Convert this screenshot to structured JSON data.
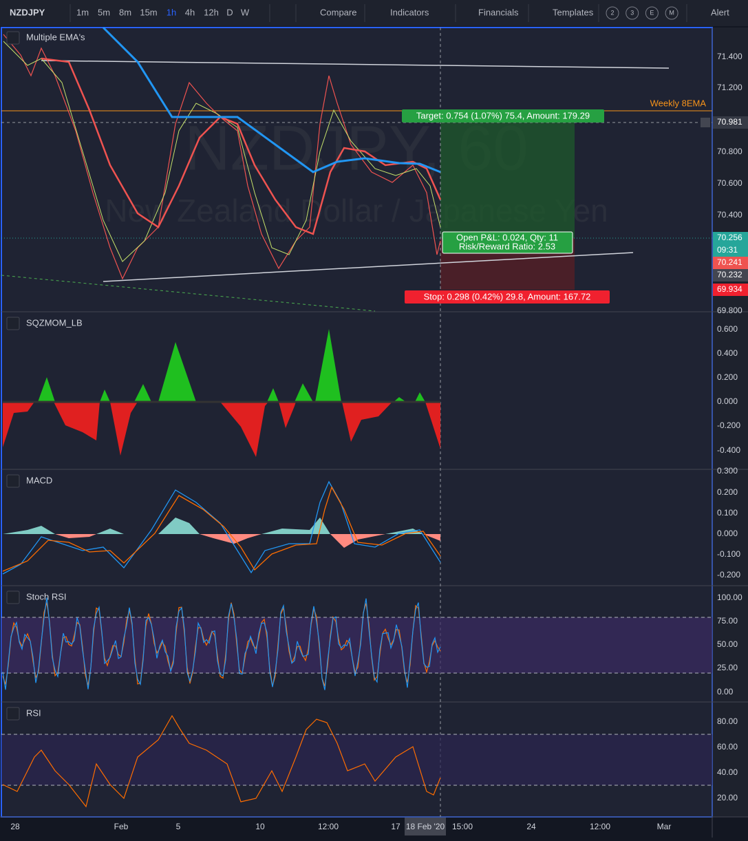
{
  "toolbar": {
    "symbol": "NZDJPY",
    "intervals": [
      "1m",
      "5m",
      "8m",
      "15m",
      "1h",
      "4h",
      "12h",
      "D",
      "W"
    ],
    "active_interval_index": 4,
    "compare": "Compare",
    "indicators": "Indicators",
    "financials": "Financials",
    "templates": "Templates",
    "layouts": [
      "2",
      "3",
      "E",
      "M"
    ],
    "alert": "Alert"
  },
  "watermark": {
    "symbol": "NZDJPY, 60",
    "description": "New Zealand Dollar / Japanese Yen"
  },
  "panes": [
    {
      "title": "Multiple EMA's",
      "axis_labels": [
        "71.400",
        "71.200",
        "70.800",
        "70.600",
        "70.400",
        "69.800"
      ]
    },
    {
      "title": "SQZMOM_LB",
      "axis_labels": [
        "0.600",
        "0.400",
        "0.200",
        "0.000",
        "-0.200",
        "-0.400"
      ]
    },
    {
      "title": "MACD",
      "axis_labels": [
        "0.300",
        "0.200",
        "0.100",
        "0.000",
        "-0.100",
        "-0.200"
      ]
    },
    {
      "title": "Stoch RSI",
      "axis_labels": [
        "100.00",
        "75.00",
        "50.00",
        "25.00",
        "0.00"
      ]
    },
    {
      "title": "RSI",
      "axis_labels": [
        "80.00",
        "60.00",
        "40.00",
        "20.00"
      ]
    }
  ],
  "annotations": {
    "weekly_ema": "Weekly 8EMA",
    "target": "Target: 0.754 (1.07%) 75.4, Amount: 179.29",
    "stop": "Stop: 0.298 (0.42%) 29.8, Amount: 167.72",
    "position": [
      "Open P&L: 0.024, Qty: 11",
      "Risk/Reward Ratio: 2.53"
    ]
  },
  "price_tags": {
    "crosshair": "70.981",
    "last": "70.256",
    "countdown": "09:31",
    "bid": "70.241",
    "ask": "70.232",
    "stop": "69.934"
  },
  "time_axis": [
    "28",
    "Feb",
    "5",
    "10",
    "12:00",
    "17",
    "18 Feb '20",
    "15:00",
    "24",
    "12:00",
    "Mar"
  ]
}
